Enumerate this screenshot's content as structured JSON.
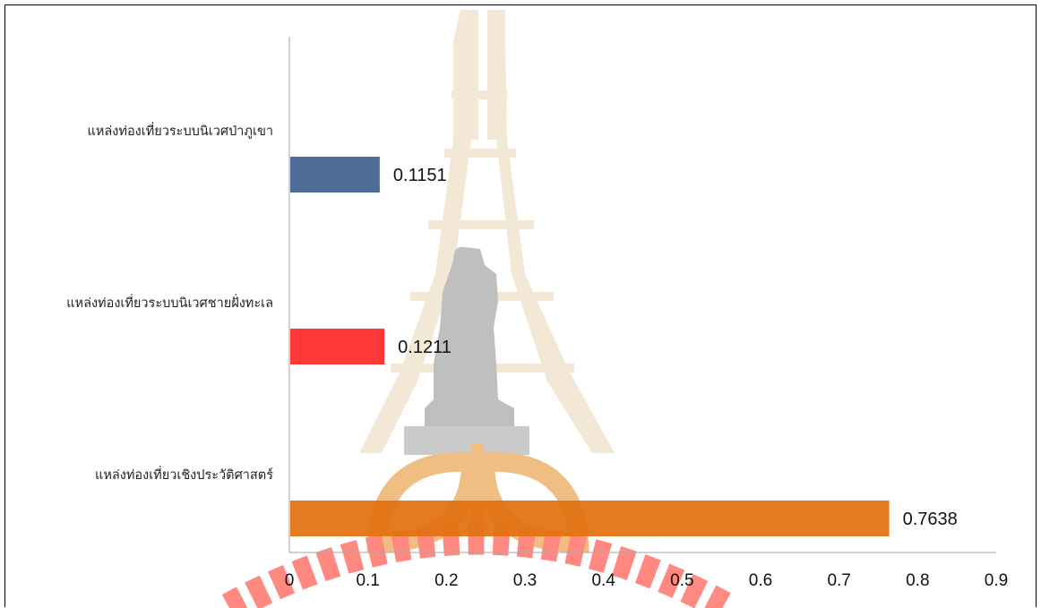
{
  "chart_data": {
    "type": "bar",
    "orientation": "horizontal",
    "title": "",
    "xlabel": "",
    "ylabel": "",
    "categories": [
      "แหล่งท่องเที่ยวระบบนิเวศป่าภูเขา",
      "แหล่งท่องเที่ยวระบบนิเวศชายฝั่งทะเล",
      "แหล่งท่องเที่ยวเชิงประวัติศาสตร์"
    ],
    "values": [
      0.1151,
      0.1211,
      0.7638
    ],
    "data_labels": [
      "0.1151",
      "0.1211",
      "0.7638"
    ],
    "colors": [
      "#3F5F8F",
      "#FF2626",
      "#E2700F"
    ],
    "xlim": [
      0,
      0.9
    ],
    "x_ticks": [
      0,
      0.1,
      0.2,
      0.3,
      0.4,
      0.5,
      0.6,
      0.7,
      0.8,
      0.9
    ],
    "x_tick_labels": [
      "0",
      "0.1",
      "0.2",
      "0.3",
      "0.4",
      "0.5",
      "0.6",
      "0.7",
      "0.8",
      "0.9"
    ],
    "grid": false,
    "legend": "none",
    "axis_color": "#A6A6A6"
  },
  "watermark": {
    "description": "university emblem",
    "colors": [
      "#D9C8A8",
      "#F5A623",
      "#FF3B1F",
      "#B0B0B0"
    ]
  }
}
